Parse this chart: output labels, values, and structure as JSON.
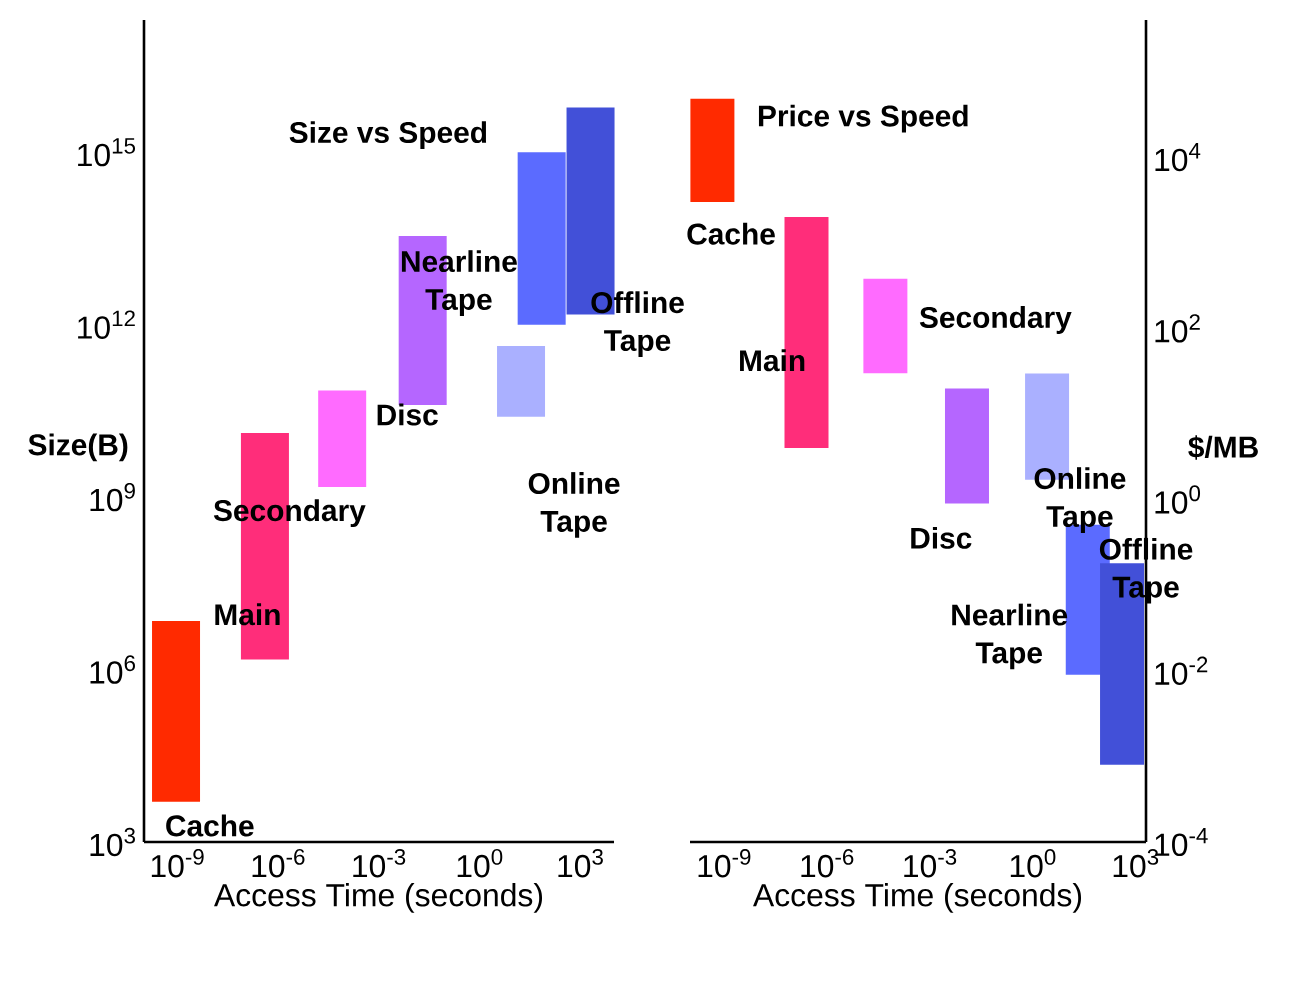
{
  "chart_data": [
    {
      "type": "bar",
      "title": "Size vs Speed",
      "xlabel": "Access Time (seconds)",
      "ylabel": "Size(B)",
      "log": "xy",
      "xlim": [
        1e-10,
        10000.0
      ],
      "ylim": [
        1000.0,
        2e+17
      ],
      "xticks": [
        {
          "value": 1e-09,
          "label": "10$^{-9}$"
        },
        {
          "value": 1e-06,
          "label": "10$^{-6}$"
        },
        {
          "value": 0.001,
          "label": "10$^{-3}$"
        },
        {
          "value": 1,
          "label": "10$^{0}$"
        },
        {
          "value": 1000.0,
          "label": "10$^{3}$"
        }
      ],
      "yticks": [
        {
          "value": 1000.0,
          "label": "10$^{3}$"
        },
        {
          "value": 1000000.0,
          "label": "10$^{6}$"
        },
        {
          "value": 1000000000.0,
          "label": "10$^{9}$"
        },
        {
          "value": 1000000000000.0,
          "label": "10$^{12}$"
        },
        {
          "value": 1000000000000000.0,
          "label": "10$^{15}$"
        }
      ],
      "series": [
        {
          "name": "Cache",
          "color": "#ff2a00",
          "x": [
            9e-10
          ],
          "base": [
            5000.0
          ],
          "values": [
            7000000.0
          ]
        },
        {
          "name": "Main",
          "color": "#ff2d7a",
          "x": [
            4e-07
          ],
          "base": [
            1500000.0
          ],
          "values": [
            13000000000.0
          ]
        },
        {
          "name": "Secondary",
          "color": "#ff6bff",
          "x": [
            8e-05
          ],
          "base": [
            1500000000.0
          ],
          "values": [
            70000000000.0
          ]
        },
        {
          "name": "Disc",
          "color": "#b566ff",
          "x": [
            0.02
          ],
          "base": [
            40000000000.0
          ],
          "values": [
            35000000000000.0
          ]
        },
        {
          "name": "Online Tape",
          "color": "#aab0ff",
          "x": [
            17
          ],
          "base": [
            25000000000.0
          ],
          "values": [
            400000000000.0
          ]
        },
        {
          "name": "Nearline Tape",
          "color": "#5b6bff",
          "x": [
            70
          ],
          "base": [
            1000000000000.0
          ],
          "values": [
            1000000000000000.0
          ]
        },
        {
          "name": "Offline Tape",
          "color": "#4250d8",
          "x": [
            2000.0
          ],
          "base": [
            1500000000000.0
          ],
          "values": [
            6000000000000000.0
          ]
        }
      ]
    },
    {
      "type": "bar",
      "title": "Price vs Speed",
      "xlabel": "Access Time (seconds)",
      "ylabel": "$/MB",
      "log": "xy",
      "xlim": [
        1e-10,
        2000.0
      ],
      "ylim": [
        0.0001,
        400000.0
      ],
      "xticks": [
        {
          "value": 1e-09,
          "label": "10$^{-9}$"
        },
        {
          "value": 1e-06,
          "label": "10$^{-6}$"
        },
        {
          "value": 0.001,
          "label": "10$^{-3}$"
        },
        {
          "value": 1,
          "label": "10$^{0}$"
        },
        {
          "value": 1000.0,
          "label": "10$^{3}$"
        }
      ],
      "yticks": [
        {
          "value": 0.0001,
          "label": "10$^{-4}$"
        },
        {
          "value": 0.01,
          "label": "10$^{-2}$"
        },
        {
          "value": 1,
          "label": "10$^{0}$"
        },
        {
          "value": 100.0,
          "label": "10$^{2}$"
        },
        {
          "value": 10000.0,
          "label": "10$^{4}$"
        }
      ],
      "series": [
        {
          "name": "Cache",
          "color": "#ff2a00",
          "x": [
            4.5e-10
          ],
          "base": [
            3000.0
          ],
          "values": [
            45000.0
          ]
        },
        {
          "name": "Main",
          "color": "#ff2d7a",
          "x": [
            2.5e-07
          ],
          "base": [
            4
          ],
          "values": [
            2000.0
          ]
        },
        {
          "name": "Secondary",
          "color": "#ff6bff",
          "x": [
            5e-05
          ],
          "base": [
            30
          ],
          "values": [
            350
          ]
        },
        {
          "name": "Disc",
          "color": "#b566ff",
          "x": [
            0.012
          ],
          "base": [
            0.9
          ],
          "values": [
            19
          ]
        },
        {
          "name": "Online Tape",
          "color": "#aab0ff",
          "x": [
            2.6
          ],
          "base": [
            1.7
          ],
          "values": [
            28
          ]
        },
        {
          "name": "Nearline Tape",
          "color": "#5b6bff",
          "x": [
            40
          ],
          "base": [
            0.009
          ],
          "values": [
            0.5
          ]
        },
        {
          "name": "Offline Tape",
          "color": "#4250d8",
          "x": [
            400
          ],
          "base": [
            0.0008
          ],
          "values": [
            0.18
          ]
        }
      ]
    }
  ]
}
